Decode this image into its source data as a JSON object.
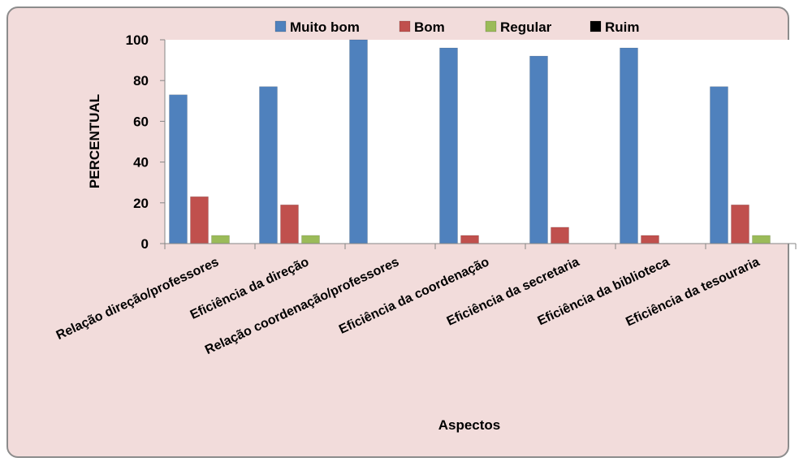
{
  "chart_data": {
    "type": "bar",
    "categories": [
      "Relação direção/professores",
      "Eficiência da direção",
      "Relação coordenação/professores",
      "Eficiência da coordenação",
      "Eficiência da secretaria",
      "Eficiência da biblioteca",
      "Eficiência da tesouraria"
    ],
    "series": [
      {
        "name": "Muito bom",
        "color": "#4f81bd",
        "values": [
          73,
          77,
          100,
          96,
          92,
          96,
          77
        ]
      },
      {
        "name": "Bom",
        "color": "#c0504d",
        "values": [
          23,
          19,
          0,
          4,
          8,
          4,
          19
        ]
      },
      {
        "name": "Regular",
        "color": "#9bbb59",
        "values": [
          4,
          4,
          0,
          0,
          0,
          0,
          4
        ]
      },
      {
        "name": "Ruim",
        "color": "#000000",
        "values": [
          0,
          0,
          0,
          0,
          0,
          0,
          0
        ]
      }
    ],
    "xlabel": "Aspectos",
    "ylabel": "PERCENTUAL",
    "ylim": [
      0,
      100
    ],
    "yticks": [
      0,
      20,
      40,
      60,
      80,
      100
    ],
    "legend_position": "top",
    "grid": false
  }
}
